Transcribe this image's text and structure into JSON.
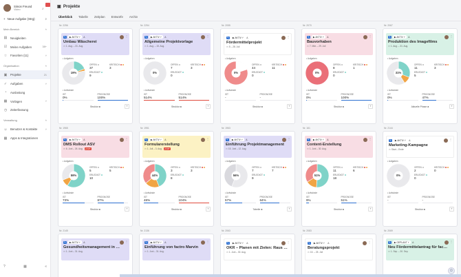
{
  "sidebar": {
    "user_name": "Simon Freund",
    "user_role": "Video",
    "new_button": "Neue Aufgabe (Strg)",
    "section_personal": "Mein Bereich",
    "section_org": "Organisation",
    "section_admin": "Verwaltung",
    "items": [
      {
        "label": "Neuigkeiten",
        "count": "",
        "icon": "news-icon"
      },
      {
        "label": "Meine Aufgaben",
        "count": "38+",
        "icon": "tasks-icon"
      },
      {
        "label": "Favoriten (11)",
        "count": "",
        "icon": "star-icon"
      },
      {
        "label": "Projekte",
        "count": "21",
        "icon": "folder-icon"
      },
      {
        "label": "Aufgaben",
        "count": "",
        "icon": "check-icon"
      },
      {
        "label": "Auslastung",
        "count": "",
        "icon": "chart-icon"
      },
      {
        "label": "Vorlagen",
        "count": "",
        "icon": "template-icon"
      },
      {
        "label": "Zeiterfassung",
        "count": "",
        "icon": "clock-icon"
      },
      {
        "label": "Benutzer & Kontakte",
        "count": "",
        "icon": "users-icon"
      },
      {
        "label": "Apps & Integrationen",
        "count": "",
        "icon": "apps-icon"
      }
    ]
  },
  "header": {
    "title": "Projekte"
  },
  "tabs": [
    "Überblick",
    "Tabelle",
    "Zeitplan",
    "Entwürfe",
    "Archiv"
  ],
  "labels": {
    "aufgaben": "Aufgaben",
    "aufwand": "Aufwände",
    "offen": "OFFEN",
    "kritisch": "KRITISCH",
    "erledigt": "ERLEDIGT",
    "ist": "IST",
    "prognose": "PROGNOSE"
  },
  "cards": [
    {
      "id": "Nr. 2256",
      "status": "AKTIV",
      "name": "Umbau Wäscherei",
      "date": "1. Aug. – 31. Aug.",
      "flag": "",
      "color": "#dfdcf6",
      "pct": "19%",
      "offen": "37",
      "kritisch": "3",
      "erledigt": "9",
      "ist": "0%",
      "prognose": "100%",
      "ist_fill": 0.02,
      "prog_fill": 1,
      "ist_red": false,
      "prog_red": false,
      "footer": "Struktur"
    },
    {
      "id": "Nr. 2254",
      "status": "AKTIV",
      "name": "Allgemeine Projektvorlage",
      "date": "1. Aug. – 15. Aug.",
      "flag": "",
      "color": "#dfdcf6",
      "pct": "0%",
      "offen": "7",
      "kritisch": "3",
      "erledigt": "0",
      "ist": "514%",
      "prognose": "514%",
      "ist_fill": 1,
      "prog_fill": 1,
      "ist_red": true,
      "prog_red": true,
      "footer": "Struktur"
    },
    {
      "id": "Nr. 2055",
      "status": "AKTIV",
      "name": "Fördermittelprojekt",
      "date": "5 – 28. Juli",
      "flag": "",
      "color": "#ffffff",
      "pct": "0%",
      "offen": "44",
      "kritisch": "11",
      "erledigt": "0",
      "ist": "-",
      "prognose": "-",
      "ist_fill": 0,
      "prog_fill": 0,
      "ist_red": false,
      "prog_red": false,
      "footer": "Struktur"
    },
    {
      "id": "Nr. 2070",
      "status": "AKTIV",
      "name": "Bauvorhaben",
      "date": "7. Mär. – 29. Juli",
      "flag": "",
      "color": "#f8dde4",
      "pct": "0%",
      "offen": "8",
      "kritisch": "1",
      "erledigt": "0",
      "ist": "0%",
      "prognose": "100%",
      "ist_fill": 0.02,
      "prog_fill": 1,
      "ist_red": false,
      "prog_red": false,
      "footer": "Struktur"
    },
    {
      "id": "Nr. 2067",
      "status": "AKTIV",
      "name": "Produktion des Imagefilms",
      "date": "1. Aug. – 31. Aug.",
      "flag": "",
      "color": "#d8f1e6",
      "pct": "31%",
      "offen": "11",
      "kritisch": "3",
      "erledigt": "5",
      "ist": "0%",
      "prognose": "47%",
      "ist_fill": 0.02,
      "prog_fill": 0.47,
      "ist_red": false,
      "prog_red": false,
      "footer": "Aktuelle Phase"
    },
    {
      "id": "Nr. 1965",
      "status": "AKTIV",
      "name": "DMS Rollout ASV",
      "date": "6. Juni – 26. Aug.",
      "flag": "+3 MT",
      "color": "#f8dde4",
      "pct": "59%",
      "offen": "5",
      "kritisch": "5",
      "erledigt": "10",
      "ist": "73%",
      "prognose": "87%",
      "ist_fill": 0.73,
      "prog_fill": 0.87,
      "ist_red": false,
      "prog_red": false,
      "footer": "Struktur"
    },
    {
      "id": "Nr. 1951",
      "status": "AKTIV",
      "name": "Formularerstellung",
      "date": "1. Juli – 3. Aug.",
      "flag": "+5 MT",
      "color": "#fcf2c4",
      "pct": "44%",
      "offen": "3",
      "kritisch": "3",
      "erledigt": "8",
      "ist": "48%",
      "prognose": "104%",
      "ist_fill": 0.48,
      "prog_fill": 1,
      "ist_red": false,
      "prog_red": true,
      "footer": "Struktur"
    },
    {
      "id": "Nr. 1963",
      "status": "AKTIV",
      "name": "Einführung Projektmanagement",
      "date": "15. Juni – 12. Aug.",
      "flag": "",
      "color": "#dfdcf6",
      "pct": "56%",
      "offen": "7",
      "kritisch": "7",
      "erledigt": "9",
      "ist": "57%",
      "prognose": "64%",
      "ist_fill": 0.57,
      "prog_fill": 0.64,
      "ist_red": false,
      "prog_red": false,
      "footer": "Tabelle"
    },
    {
      "id": "Nr. 161",
      "status": "AKTIV",
      "name": "Content-Erstellung",
      "date": "1. Juni – 30. Aug.",
      "flag": "",
      "color": "#f8dde4",
      "pct": "51%",
      "offen": "11",
      "kritisch": "6",
      "erledigt": "18",
      "ist": "9%",
      "prognose": "51%",
      "ist_fill": 0.09,
      "prog_fill": 0.51,
      "ist_red": false,
      "prog_red": false,
      "footer": "Struktur"
    },
    {
      "id": "Nr. 2144",
      "status": "AKTIV",
      "name": "Marketing-Kampagne",
      "date": "Start – Ende",
      "flag": "",
      "color": "#ffffff",
      "pct": "0%",
      "offen": "2",
      "kritisch": "0",
      "erledigt": "0",
      "ist": "-",
      "prognose": "-",
      "ist_fill": 0,
      "prog_fill": 0,
      "ist_red": false,
      "prog_red": false,
      "footer": "Struktur"
    },
    {
      "id": "Nr. 2145",
      "status": "AKTIV",
      "name": "Gesundheitsmanagement in …",
      "date": "1. Juni – 31. Aug.",
      "flag": "",
      "color": "#dfdcf6",
      "pct": "",
      "offen": "",
      "kritisch": "",
      "erledigt": "",
      "ist": "",
      "prognose": "",
      "ist_fill": 0,
      "prog_fill": 0,
      "ist_red": false,
      "prog_red": false,
      "footer": ""
    },
    {
      "id": "Nr. 2136",
      "status": "AKTIV",
      "name": "Einführung von factro Marvin",
      "date": "1. Juni – 31. Aug.",
      "flag": "",
      "color": "#dfdcf6",
      "pct": "",
      "offen": "",
      "kritisch": "",
      "erledigt": "",
      "ist": "",
      "prognose": "",
      "ist_fill": 0,
      "prog_fill": 0,
      "ist_red": false,
      "prog_red": false,
      "footer": ""
    },
    {
      "id": "Nr. 2063",
      "status": "AKTIV",
      "name": "OKR – Planen mit Zielen: Raus …",
      "date": "1. Juni – 30. Aug.",
      "flag": "",
      "color": "#ffffff",
      "pct": "",
      "offen": "",
      "kritisch": "",
      "erledigt": "",
      "ist": "",
      "prognose": "",
      "ist_fill": 0,
      "prog_fill": 0,
      "ist_red": false,
      "prog_red": false,
      "footer": ""
    },
    {
      "id": "Nr. 2083",
      "status": "AKTIV",
      "name": "Beratungsprojekt",
      "date": "15. – 25. Juli",
      "flag": "",
      "color": "#ffffff",
      "pct": "",
      "offen": "",
      "kritisch": "",
      "erledigt": "",
      "ist": "",
      "prognose": "",
      "ist_fill": 0,
      "prog_fill": 0,
      "ist_red": false,
      "prog_red": false,
      "footer": ""
    },
    {
      "id": "Nr. 2069",
      "status": "GEPLANT",
      "name": "Neu Fördermittelantrag für fac…",
      "date": "1. Sep. – 30. Sep.",
      "flag": "",
      "color": "#d8f1e6",
      "pct": "",
      "offen": "",
      "kritisch": "",
      "erledigt": "",
      "ist": "",
      "prognose": "",
      "ist_fill": 0,
      "prog_fill": 0,
      "ist_red": false,
      "prog_red": false,
      "footer": ""
    }
  ],
  "pies": [
    {
      "segments": [
        {
          "v": 19,
          "c": "#7fd3c8"
        },
        {
          "v": 3,
          "c": "#f1a544"
        },
        {
          "v": 78,
          "c": "#e9e9ec"
        }
      ]
    },
    {
      "segments": [
        {
          "v": 100,
          "c": "#e9e9ec"
        }
      ]
    },
    {
      "segments": [
        {
          "v": 20,
          "c": "#ffffff"
        },
        {
          "v": 80,
          "c": "#ef8b8b"
        }
      ]
    },
    {
      "segments": [
        {
          "v": 100,
          "c": "#ea6f78"
        }
      ]
    },
    {
      "segments": [
        {
          "v": 31,
          "c": "#7fd3c8"
        },
        {
          "v": 10,
          "c": "#f1a544"
        },
        {
          "v": 59,
          "c": "#e9e9ec"
        }
      ]
    },
    {
      "segments": [
        {
          "v": 59,
          "c": "#7fd3c8"
        },
        {
          "v": 10,
          "c": "#f1a544"
        },
        {
          "v": 31,
          "c": "#e9e9ec"
        }
      ]
    },
    {
      "segments": [
        {
          "v": 44,
          "c": "#7fd3c8"
        },
        {
          "v": 20,
          "c": "#f1a544"
        },
        {
          "v": 36,
          "c": "#ef8b8b"
        }
      ]
    },
    {
      "segments": [
        {
          "v": 56,
          "c": "#e9e9ec"
        },
        {
          "v": 44,
          "c": "#d9d9de"
        }
      ]
    },
    {
      "segments": [
        {
          "v": 51,
          "c": "#7fd3c8"
        },
        {
          "v": 15,
          "c": "#f1a544"
        },
        {
          "v": 34,
          "c": "#ef8b8b"
        }
      ]
    },
    {
      "segments": [
        {
          "v": 100,
          "c": "#e9e9ec"
        }
      ]
    }
  ]
}
